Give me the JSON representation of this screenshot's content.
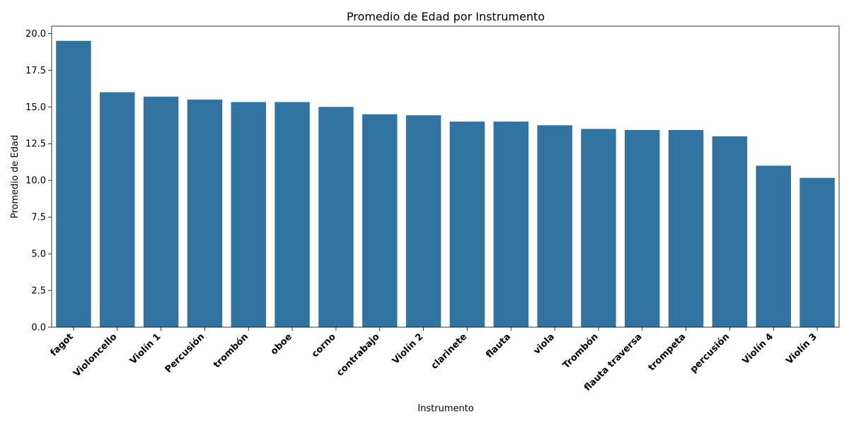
{
  "chart_data": {
    "type": "bar",
    "title": "Promedio de Edad por Instrumento",
    "xlabel": "Instrumento",
    "ylabel": "Promedio de Edad",
    "categories": [
      "fagot",
      "Violoncello",
      "Violín 1",
      "Percusión",
      "trombón",
      "oboe",
      "corno",
      "contrabajo",
      "Violín 2",
      "clarinete",
      "flauta",
      "viola",
      "Trombón",
      "flauta traversa",
      "trompeta",
      "percusión",
      "Violín 4",
      "Violín 3"
    ],
    "values": [
      19.5,
      16.0,
      15.7,
      15.5,
      15.33,
      15.33,
      15.0,
      14.5,
      14.43,
      14.0,
      14.0,
      13.75,
      13.5,
      13.43,
      13.43,
      13.0,
      11.0,
      10.17
    ],
    "ylim": [
      0,
      20.5
    ],
    "yticks": [
      0.0,
      2.5,
      5.0,
      7.5,
      10.0,
      12.5,
      15.0,
      17.5,
      20.0
    ],
    "ytick_labels": [
      "0.0",
      "2.5",
      "5.0",
      "7.5",
      "10.0",
      "12.5",
      "15.0",
      "17.5",
      "20.0"
    ],
    "bar_color": "#3274a1",
    "grid": false,
    "legend": "none"
  }
}
